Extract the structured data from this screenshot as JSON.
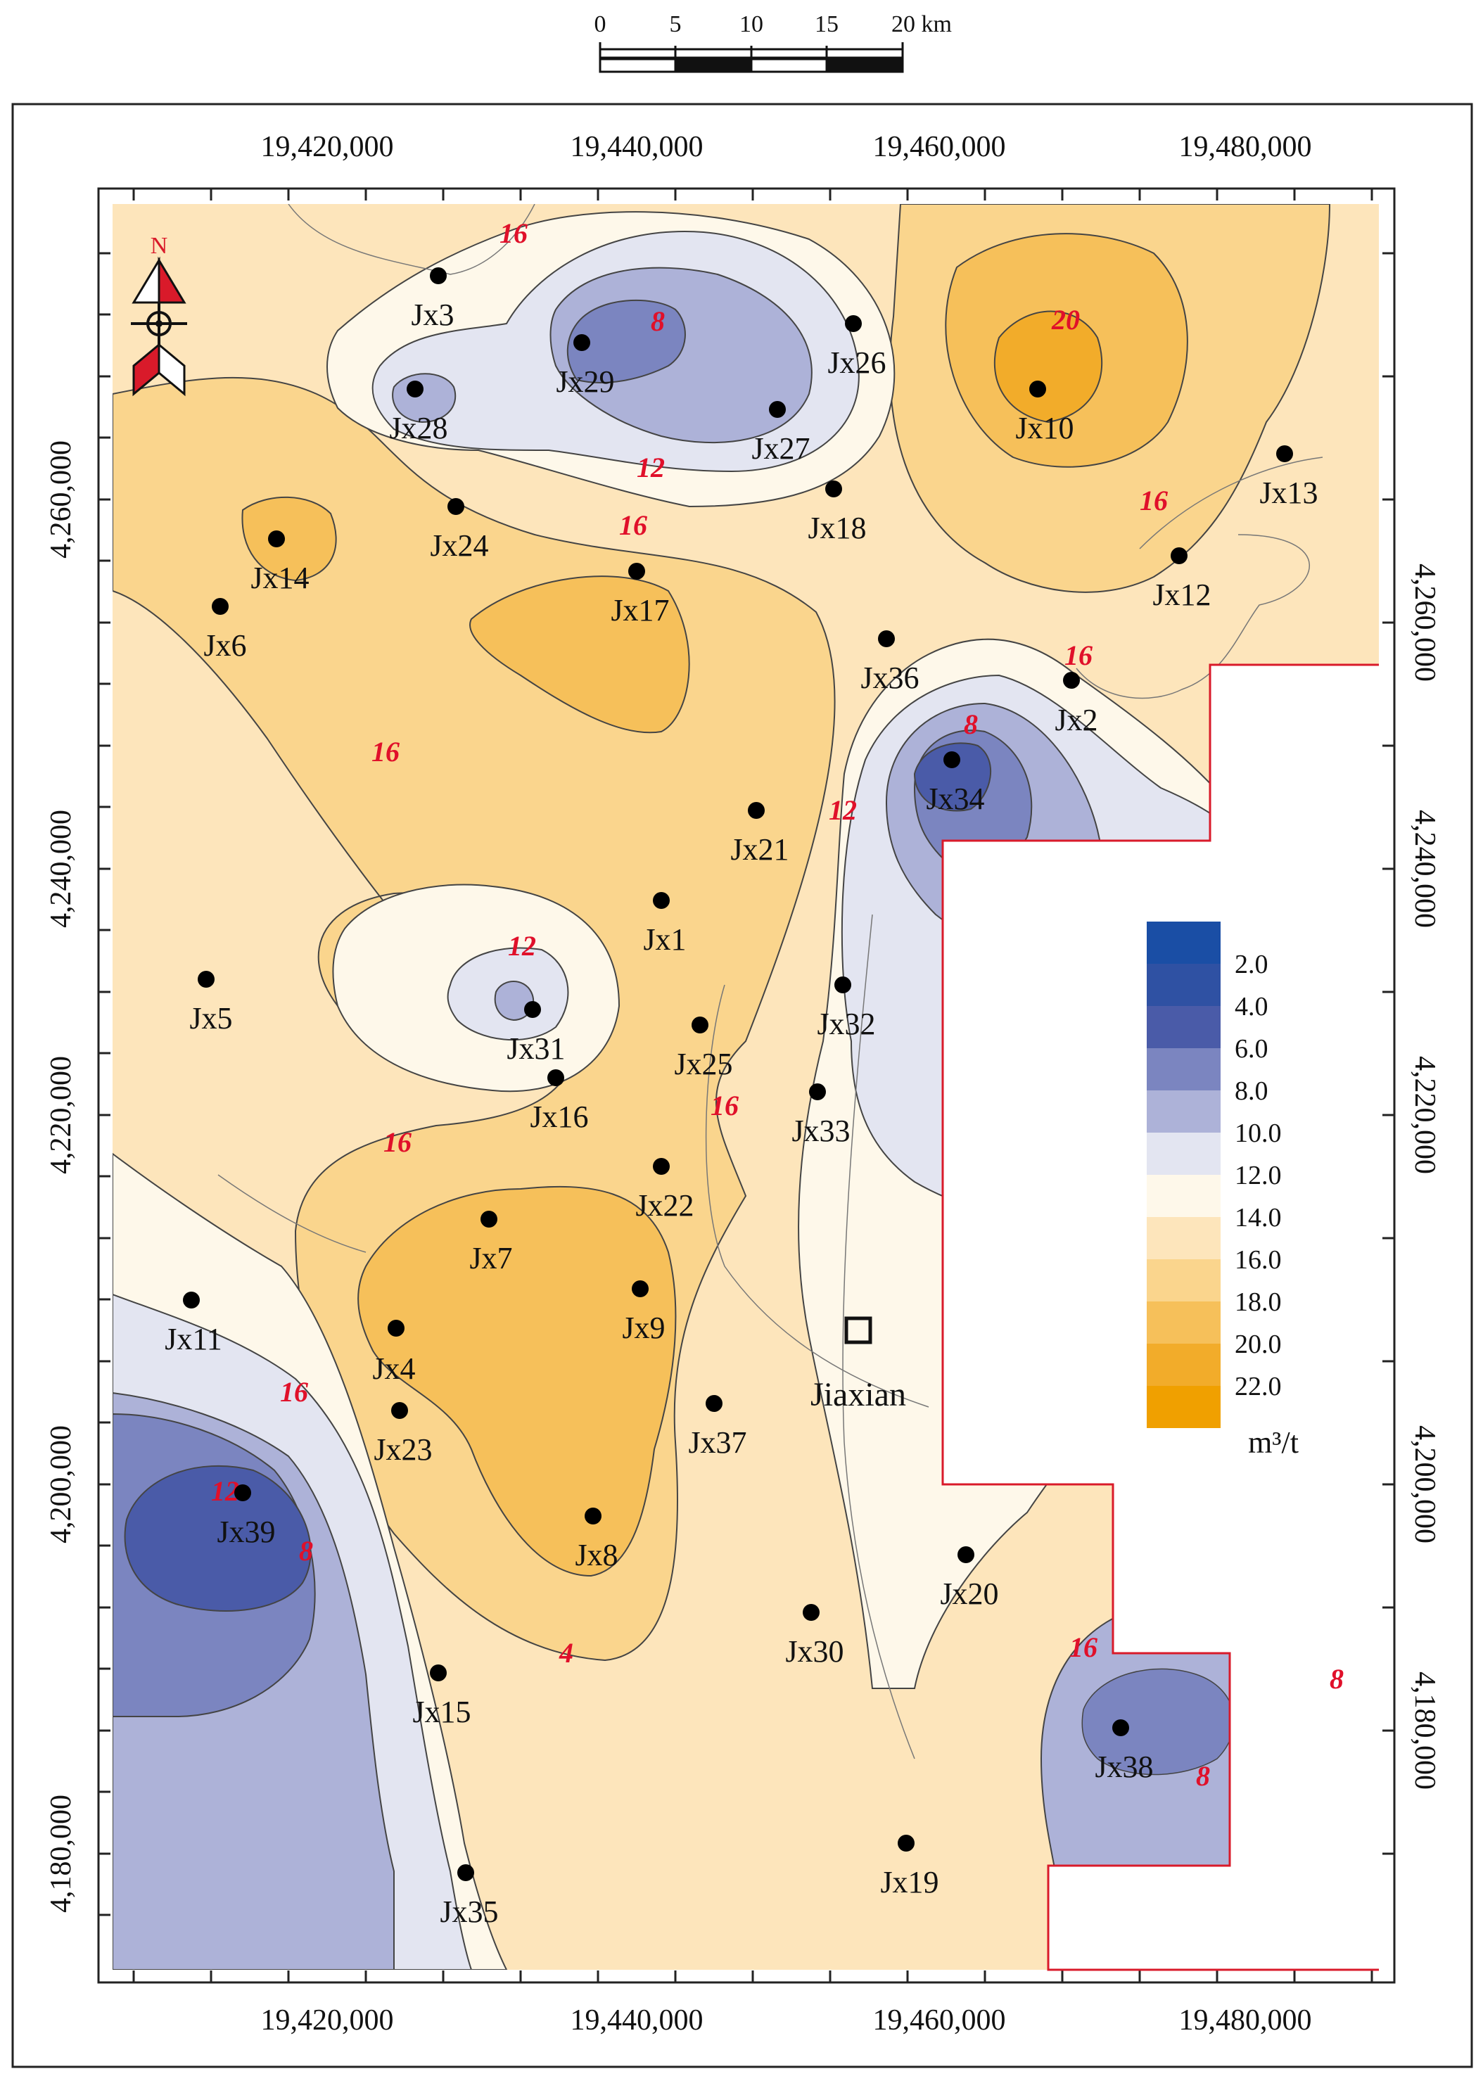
{
  "scale_bar": {
    "labels": [
      "0",
      "5",
      "10",
      "15",
      "20 km"
    ]
  },
  "north_arrow": {
    "label": "N"
  },
  "axes": {
    "x_ticks": [
      "19,420,000",
      "19,440,000",
      "19,460,000",
      "19,480,000"
    ],
    "y_ticks": [
      "4,260,000",
      "4,240,000",
      "4,220,000",
      "4,200,000",
      "4,180,000"
    ]
  },
  "town": {
    "name": "Jiaxian"
  },
  "wells": [
    "Jx1",
    "Jx2",
    "Jx3",
    "Jx4",
    "Jx5",
    "Jx6",
    "Jx7",
    "Jx8",
    "Jx9",
    "Jx10",
    "Jx11",
    "Jx12",
    "Jx13",
    "Jx14",
    "Jx15",
    "Jx16",
    "Jx17",
    "Jx18",
    "Jx19",
    "Jx20",
    "Jx21",
    "Jx22",
    "Jx23",
    "Jx24",
    "Jx25",
    "Jx26",
    "Jx27",
    "Jx28",
    "Jx29",
    "Jx30",
    "Jx31",
    "Jx32",
    "Jx33",
    "Jx34",
    "Jx35",
    "Jx36",
    "Jx37",
    "Jx38",
    "Jx39"
  ],
  "contour_labels": [
    "16",
    "8",
    "12",
    "16",
    "20",
    "16",
    "16",
    "16",
    "8",
    "12",
    "12",
    "16",
    "16",
    "16",
    "12",
    "8",
    "4",
    "8",
    "16",
    "8"
  ],
  "legend": {
    "values": [
      "2.0",
      "4.0",
      "6.0",
      "8.0",
      "10.0",
      "12.0",
      "14.0",
      "16.0",
      "18.0",
      "20.0",
      "22.0"
    ],
    "colors": [
      "#1a4ea5",
      "#2f51a3",
      "#4a5ba8",
      "#7b85c0",
      "#adb2d8",
      "#e3e5f1",
      "#fef8ea",
      "#fde5bb",
      "#fad58d",
      "#f6c05a",
      "#f2ac2a",
      "#f0a000"
    ],
    "unit": "m³/t"
  }
}
